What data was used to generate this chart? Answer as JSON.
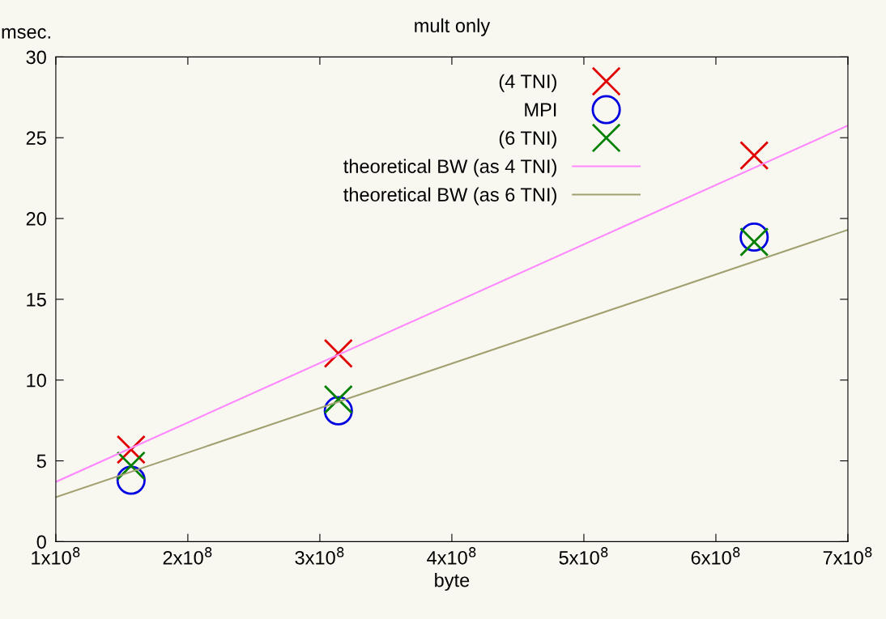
{
  "chart_data": {
    "type": "scatter",
    "title": "mult only",
    "xlabel": "byte",
    "ylabel": "msec.",
    "xlim": [
      100000000,
      700000000
    ],
    "ylim": [
      0,
      30
    ],
    "xticks": [
      {
        "value": 100000000,
        "label": "1x10$^{8}$"
      },
      {
        "value": 200000000,
        "label": "2x10$^{8}$"
      },
      {
        "value": 300000000,
        "label": "3x10$^{8}$"
      },
      {
        "value": 400000000,
        "label": "4x10$^{8}$"
      },
      {
        "value": 500000000,
        "label": "5x10$^{8}$"
      },
      {
        "value": 600000000,
        "label": "6x10$^{8}$"
      },
      {
        "value": 700000000,
        "label": "7x10$^{8}$"
      }
    ],
    "yticks": [
      0,
      5,
      10,
      15,
      20,
      25,
      30
    ],
    "grid": false,
    "legend": "top",
    "series": [
      {
        "name": "(4 TNI)",
        "marker": "cross",
        "color": "#e00000",
        "x": [
          157000000,
          314000000,
          629000000
        ],
        "values": [
          5.7,
          11.65,
          23.9
        ]
      },
      {
        "name": "MPI",
        "marker": "circle",
        "color": "#0000e0",
        "x": [
          157000000,
          314000000,
          629000000
        ],
        "values": [
          3.8,
          8.1,
          18.85
        ]
      },
      {
        "name": "(6 TNI)",
        "marker": "cross",
        "color": "#008000",
        "x": [
          157000000,
          314000000,
          629000000
        ],
        "values": [
          4.7,
          8.8,
          18.55
        ]
      },
      {
        "name": "theoretical BW (as 4 TNI)",
        "type": "line",
        "line_style": "solid",
        "color": "#ff88ff",
        "x": [
          100000000,
          700000000
        ],
        "values": [
          3.7,
          25.75
        ]
      },
      {
        "name": "theoretical BW (as 6 TNI)",
        "type": "line",
        "line_style": "solid",
        "color": "#a0a070",
        "x": [
          100000000,
          700000000
        ],
        "values": [
          2.75,
          19.3
        ]
      }
    ]
  }
}
